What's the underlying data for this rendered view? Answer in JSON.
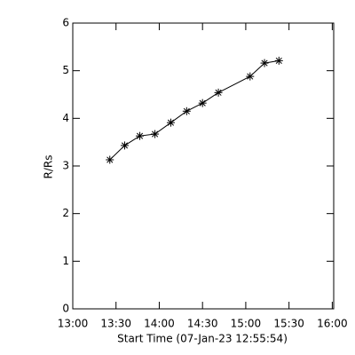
{
  "chart_data": {
    "type": "line",
    "x_label": "Start Time (07-Jan-23 12:55:54)",
    "y_label": "R/Rs",
    "xlim": [
      780,
      961
    ],
    "ylim": [
      0,
      6
    ],
    "xticks": [
      {
        "value": 780,
        "label": "13:00"
      },
      {
        "value": 810,
        "label": "13:30"
      },
      {
        "value": 840,
        "label": "14:00"
      },
      {
        "value": 870,
        "label": "14:30"
      },
      {
        "value": 900,
        "label": "15:00"
      },
      {
        "value": 930,
        "label": "15:30"
      },
      {
        "value": 960,
        "label": "16:00"
      }
    ],
    "yticks": [
      0,
      1,
      2,
      3,
      4,
      5,
      6
    ],
    "color": "#000000",
    "x": [
      805.7,
      816,
      826.5,
      837,
      848,
      859,
      870,
      881,
      903,
      913,
      923
    ],
    "values": [
      3.13,
      3.43,
      3.63,
      3.67,
      3.91,
      4.15,
      4.32,
      4.54,
      4.88,
      5.16,
      5.21
    ]
  }
}
